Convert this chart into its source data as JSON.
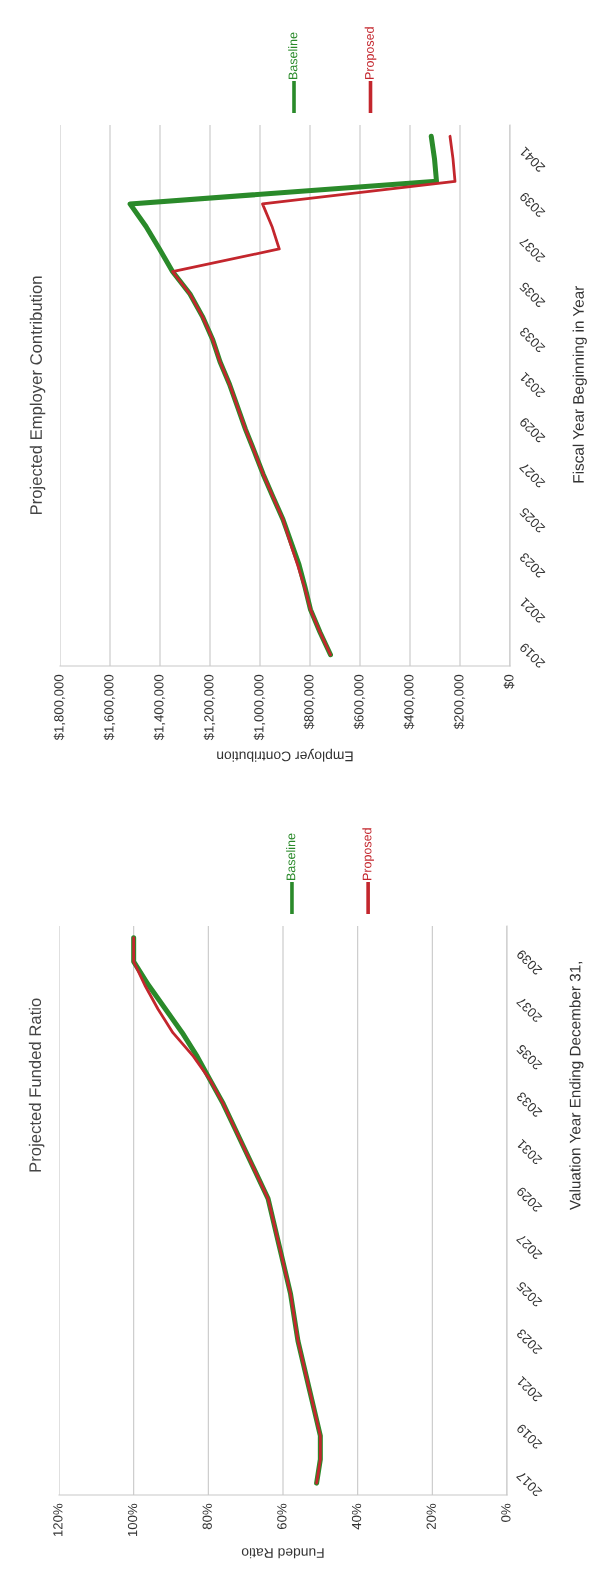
{
  "chart_data": [
    {
      "type": "line",
      "orientation": "horizontal",
      "title": "Projected Funded Ratio",
      "ylabel": "Valuation Year Ending December 31,",
      "xlabel": "Funded Ratio",
      "categories": [
        null,
        "2039",
        null,
        "2037",
        null,
        "2035",
        null,
        "2033",
        null,
        "2031",
        null,
        "2029",
        null,
        "2027",
        null,
        "2025",
        null,
        "2023",
        null,
        "2021",
        null,
        "2019",
        null,
        "2017"
      ],
      "series": [
        {
          "name": "Baseline",
          "color": "#2a8a2a",
          "values": [
            100,
            100,
            96,
            91.5,
            87,
            83,
            79.5,
            76,
            73,
            70,
            67,
            64,
            62.5,
            61,
            59.5,
            58,
            57,
            56,
            54.5,
            53,
            51.5,
            50,
            50,
            51
          ]
        },
        {
          "name": "Proposed",
          "color": "#c3262d",
          "values": [
            100,
            100,
            97,
            93.5,
            89.5,
            84,
            79.5,
            76,
            73,
            70,
            67,
            64,
            62.5,
            61,
            59.5,
            58,
            57,
            56,
            54.5,
            53,
            51.5,
            50,
            50,
            51
          ]
        }
      ],
      "xlim": [
        120,
        0
      ],
      "xticks": [
        {
          "value": 120,
          "label": "120%"
        },
        {
          "value": 100,
          "label": "100%"
        },
        {
          "value": 80,
          "label": "80%"
        },
        {
          "value": 60,
          "label": "60%"
        },
        {
          "value": 40,
          "label": "40%"
        },
        {
          "value": 20,
          "label": "20%"
        },
        {
          "value": 0,
          "label": "0%"
        }
      ],
      "grid": "x",
      "legend": "top"
    },
    {
      "type": "line",
      "orientation": "horizontal",
      "title": "Projected Employer Contribution",
      "ylabel": "Fiscal Year Beginning in Year",
      "xlabel": "Employer Contribution",
      "categories": [
        null,
        "2041",
        null,
        "2039",
        null,
        "2037",
        null,
        "2035",
        null,
        "2033",
        null,
        "2031",
        null,
        "2029",
        null,
        "2027",
        null,
        "2025",
        null,
        "2023",
        null,
        "2021",
        null,
        "2019"
      ],
      "series": [
        {
          "name": "Baseline",
          "color": "#2a8a2a",
          "values": [
            315000,
            302000,
            294000,
            1520000,
            1456000,
            1402000,
            1350000,
            1280000,
            1230000,
            1190000,
            1160000,
            1122000,
            1090000,
            1058000,
            1022000,
            987000,
            948000,
            908000,
            876000,
            844000,
            820000,
            798000,
            760000,
            718000
          ]
        },
        {
          "name": "Proposed",
          "color": "#c3262d",
          "values": [
            240000,
            228000,
            220000,
            990000,
            952000,
            923000,
            1350000,
            1280000,
            1230000,
            1190000,
            1160000,
            1122000,
            1090000,
            1058000,
            1022000,
            987000,
            948000,
            908000,
            880000,
            850000,
            822000,
            798000,
            760000,
            718000
          ]
        }
      ],
      "xlim": [
        1800000,
        0
      ],
      "xticks": [
        {
          "value": 1800000,
          "label": "$1,800,000"
        },
        {
          "value": 1600000,
          "label": "$1,600,000"
        },
        {
          "value": 1400000,
          "label": "$1,400,000"
        },
        {
          "value": 1200000,
          "label": "$1,200,000"
        },
        {
          "value": 1000000,
          "label": "$1,000,000"
        },
        {
          "value": 800000,
          "label": "$800,000"
        },
        {
          "value": 600000,
          "label": "$600,000"
        },
        {
          "value": 400000,
          "label": "$400,000"
        },
        {
          "value": 200000,
          "label": "$200,000"
        },
        {
          "value": 0,
          "label": "$0"
        }
      ],
      "grid": "x",
      "legend": "top"
    }
  ]
}
